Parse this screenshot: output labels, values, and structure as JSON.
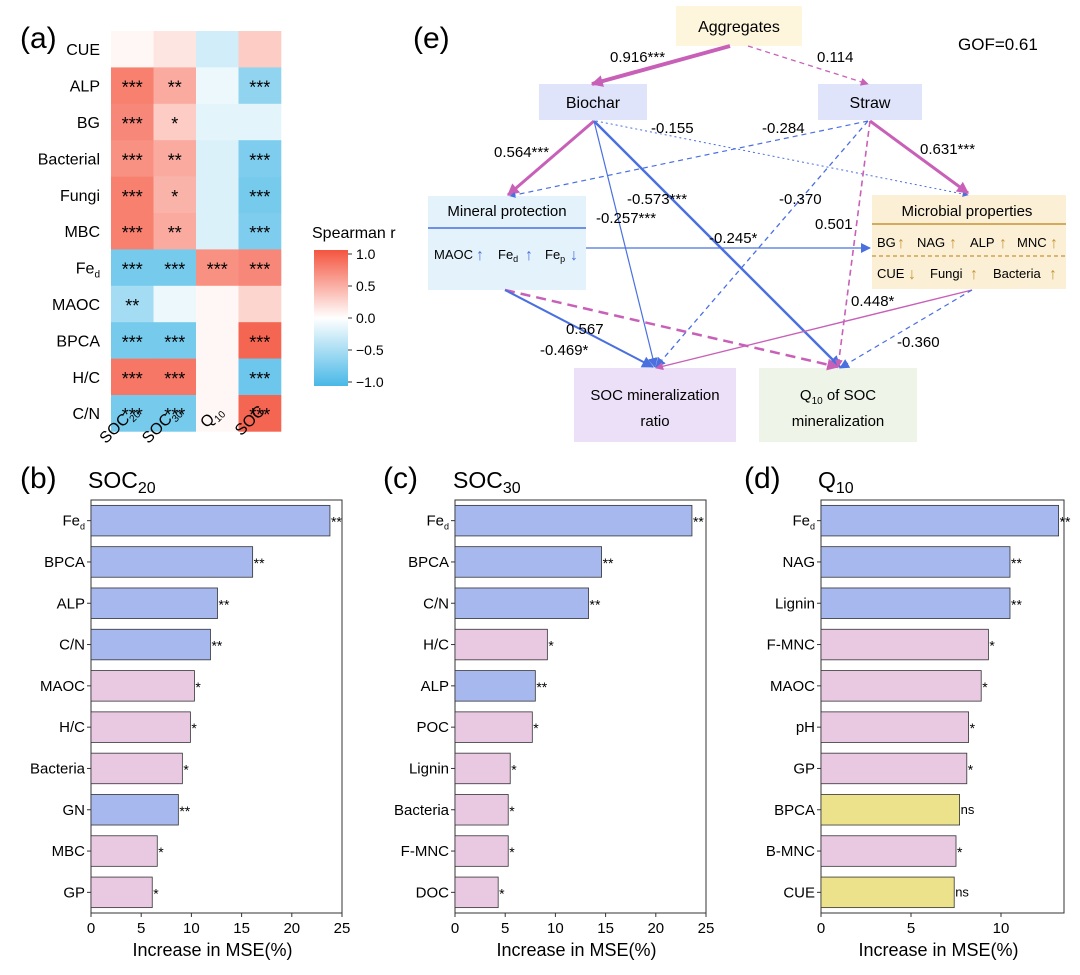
{
  "chart_data": [
    {
      "panel": "(a)",
      "type": "heatmap",
      "rows": [
        "CUE",
        "ALP",
        "BG",
        "Bacterial",
        "Fungi",
        "MBC",
        "Fe_d",
        "MAOC",
        "BPCA",
        "H/C",
        "C/N"
      ],
      "columns": [
        "SOC20",
        "SOC30",
        "Q10",
        "SOC"
      ],
      "values": [
        [
          0.05,
          0.15,
          -0.25,
          0.3
        ],
        [
          0.75,
          0.5,
          -0.1,
          -0.6
        ],
        [
          0.7,
          0.3,
          -0.15,
          -0.15
        ],
        [
          0.65,
          0.5,
          -0.2,
          -0.7
        ],
        [
          0.75,
          0.45,
          -0.2,
          -0.75
        ],
        [
          0.75,
          0.5,
          -0.2,
          -0.7
        ],
        [
          -0.75,
          -0.75,
          0.65,
          0.7
        ],
        [
          -0.5,
          -0.1,
          0.05,
          0.25
        ],
        [
          -0.75,
          -0.75,
          0.05,
          0.9
        ],
        [
          0.8,
          0.8,
          0.05,
          -0.8
        ],
        [
          -0.75,
          -0.75,
          0.05,
          0.9
        ]
      ],
      "significance": [
        [
          "",
          "",
          "",
          ""
        ],
        [
          "***",
          "**",
          "",
          "***"
        ],
        [
          "***",
          "*",
          "",
          ""
        ],
        [
          "***",
          "**",
          "",
          "***"
        ],
        [
          "***",
          "*",
          "",
          "***"
        ],
        [
          "***",
          "**",
          "",
          "***"
        ],
        [
          "***",
          "***",
          "***",
          "***"
        ],
        [
          "**",
          "",
          "",
          ""
        ],
        [
          "***",
          "***",
          "",
          "***"
        ],
        [
          "***",
          "***",
          "",
          "***"
        ],
        [
          "***",
          "***",
          "",
          "***"
        ]
      ],
      "legend_title": "Spearman r",
      "legend_ticks": [
        "1.0",
        "0.5",
        "0.0",
        "−0.5",
        "−1.0"
      ],
      "range": [
        -1,
        1
      ]
    },
    {
      "panel": "(e)",
      "type": "path-diagram",
      "gof": "GOF=0.61",
      "nodes": {
        "aggregates": "Aggregates",
        "biochar": "Biochar",
        "straw": "Straw",
        "mineral": "Mineral protection",
        "microbial": "Microbial properties",
        "socratio_l1": "SOC mineralization",
        "socratio_l2": "ratio",
        "q10_l1": "Q",
        "q10_sub": "10",
        "q10_l1b": " of SOC",
        "q10_l2": "mineralization"
      },
      "mineral_items": [
        "MAOC",
        "Fe",
        "d",
        "Fe",
        "p"
      ],
      "microbial_items": [
        "BG",
        "NAG",
        "ALP",
        "MNC",
        "CUE",
        "Fungi",
        "Bacteria"
      ],
      "coefficients": [
        "0.916***",
        "0.114",
        "0.564***",
        "-0.155",
        "-0.284",
        "0.631***",
        "-0.573***",
        "-0.257***",
        "-0.370",
        "0.501",
        "-0.245*",
        "0.567",
        "0.448*",
        "-0.469*",
        "-0.360"
      ]
    },
    {
      "panel": "(b)",
      "type": "bar",
      "title": "SOC",
      "title_sub": "20",
      "xlabel": "Increase in MSE(%)",
      "xlim": [
        0,
        25
      ],
      "xticks": [
        "0",
        "5",
        "10",
        "15",
        "20",
        "25"
      ],
      "categories": [
        "Fe_d",
        "BPCA",
        "ALP",
        "C/N",
        "MAOC",
        "H/C",
        "Bacteria",
        "GN",
        "MBC",
        "GP"
      ],
      "values": [
        23.8,
        16.1,
        12.6,
        11.9,
        10.3,
        9.9,
        9.1,
        8.7,
        6.6,
        6.1
      ],
      "significance": [
        "**",
        "**",
        "**",
        "**",
        "*",
        "*",
        "*",
        "**",
        "*",
        "*"
      ],
      "groups": [
        "blue",
        "blue",
        "blue",
        "blue",
        "pink",
        "pink",
        "pink",
        "blue",
        "pink",
        "pink"
      ]
    },
    {
      "panel": "(c)",
      "type": "bar",
      "title": "SOC",
      "title_sub": "30",
      "xlabel": "Increase in MSE(%)",
      "xlim": [
        0,
        25
      ],
      "xticks": [
        "0",
        "5",
        "10",
        "15",
        "20",
        "25"
      ],
      "categories": [
        "Fe_d",
        "BPCA",
        "C/N",
        "H/C",
        "ALP",
        "POC",
        "Lignin",
        "Bacteria",
        "F-MNC",
        "DOC"
      ],
      "values": [
        23.6,
        14.6,
        13.3,
        9.2,
        8.0,
        7.7,
        5.5,
        5.3,
        5.3,
        4.3
      ],
      "significance": [
        "**",
        "**",
        "**",
        "*",
        "**",
        "*",
        "*",
        "*",
        "*",
        "*"
      ],
      "groups": [
        "blue",
        "blue",
        "blue",
        "pink",
        "blue",
        "pink",
        "pink",
        "pink",
        "pink",
        "pink"
      ]
    },
    {
      "panel": "(d)",
      "type": "bar",
      "title": "Q",
      "title_sub": "10",
      "xlabel": "Increase in MSE(%)",
      "xlim": [
        0,
        13.5
      ],
      "xticks": [
        "0",
        "5",
        "10"
      ],
      "categories": [
        "Fe_d",
        "NAG",
        "Lignin",
        "F-MNC",
        "MAOC",
        "pH",
        "GP",
        "BPCA",
        "B-MNC",
        "CUE"
      ],
      "values": [
        13.2,
        10.5,
        10.5,
        9.3,
        8.9,
        8.2,
        8.1,
        7.7,
        7.5,
        7.4
      ],
      "significance": [
        "**",
        "**",
        "**",
        "*",
        "*",
        "*",
        "*",
        "ns",
        "*",
        "ns"
      ],
      "groups": [
        "blue",
        "blue",
        "blue",
        "pink",
        "pink",
        "pink",
        "pink",
        "yellow",
        "pink",
        "yellow"
      ]
    }
  ],
  "colors": {
    "blue_bar": "#a6b8ee",
    "pink_bar": "#e9c8e2",
    "yellow_bar": "#ede28c",
    "path_pos": "#c860b8",
    "path_neg": "#4a70e0",
    "heat_pos": "#f4553f",
    "heat_neg": "#48b8e6"
  }
}
